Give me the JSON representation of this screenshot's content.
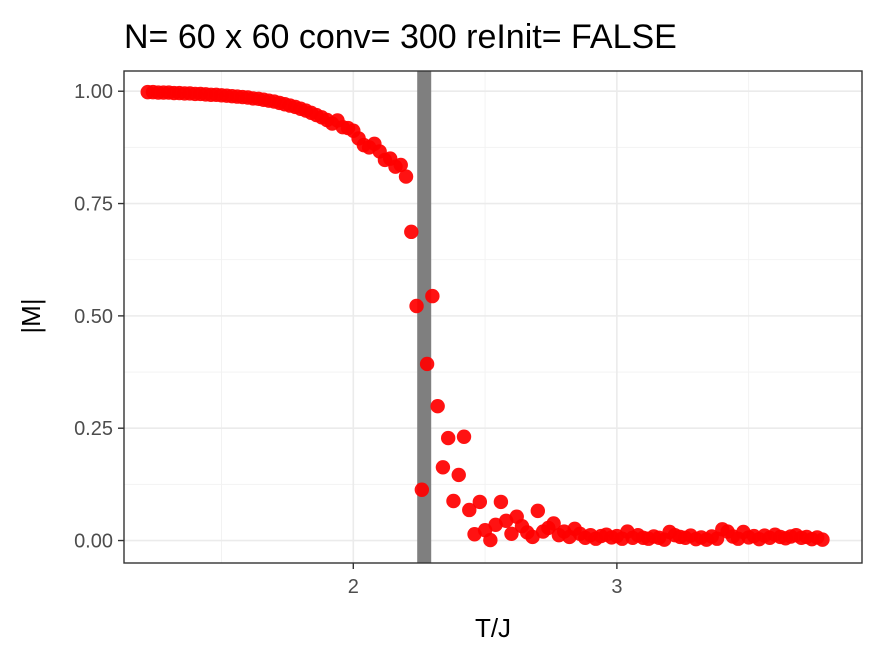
{
  "chart_data": {
    "type": "scatter",
    "title": "N= 60 x 60  conv= 300  reInit= FALSE",
    "xlabel": "T/J",
    "ylabel": "|M|",
    "xlim": [
      1.13,
      3.93
    ],
    "ylim": [
      -0.05,
      1.045
    ],
    "x_ticks": [
      2,
      3
    ],
    "y_ticks": [
      0.0,
      0.25,
      0.5,
      0.75,
      1.0
    ],
    "x_tick_labels": [
      "2",
      "3"
    ],
    "y_tick_labels": [
      "0.00",
      "0.25",
      "0.50",
      "0.75",
      "1.00"
    ],
    "grid": true,
    "reference_line": {
      "x": 2.269,
      "color": "#7f7f7f"
    },
    "point_color": "#ff0000",
    "series": [
      {
        "points": [
          [
            1.22,
            0.998
          ],
          [
            1.24,
            0.998
          ],
          [
            1.26,
            0.997
          ],
          [
            1.28,
            0.997
          ],
          [
            1.3,
            0.997
          ],
          [
            1.32,
            0.996
          ],
          [
            1.34,
            0.996
          ],
          [
            1.36,
            0.995
          ],
          [
            1.38,
            0.995
          ],
          [
            1.4,
            0.994
          ],
          [
            1.42,
            0.994
          ],
          [
            1.44,
            0.993
          ],
          [
            1.46,
            0.992
          ],
          [
            1.48,
            0.992
          ],
          [
            1.5,
            0.991
          ],
          [
            1.52,
            0.99
          ],
          [
            1.54,
            0.989
          ],
          [
            1.56,
            0.988
          ],
          [
            1.58,
            0.987
          ],
          [
            1.6,
            0.986
          ],
          [
            1.62,
            0.984
          ],
          [
            1.64,
            0.983
          ],
          [
            1.66,
            0.981
          ],
          [
            1.68,
            0.979
          ],
          [
            1.7,
            0.977
          ],
          [
            1.72,
            0.974
          ],
          [
            1.74,
            0.971
          ],
          [
            1.76,
            0.968
          ],
          [
            1.78,
            0.965
          ],
          [
            1.8,
            0.961
          ],
          [
            1.82,
            0.957
          ],
          [
            1.84,
            0.952
          ],
          [
            1.86,
            0.947
          ],
          [
            1.88,
            0.942
          ],
          [
            1.9,
            0.936
          ],
          [
            1.92,
            0.928
          ],
          [
            1.94,
            0.935
          ],
          [
            1.96,
            0.92
          ],
          [
            1.98,
            0.918
          ],
          [
            2.0,
            0.912
          ],
          [
            2.02,
            0.895
          ],
          [
            2.04,
            0.88
          ],
          [
            2.06,
            0.875
          ],
          [
            2.08,
            0.883
          ],
          [
            2.1,
            0.866
          ],
          [
            2.12,
            0.847
          ],
          [
            2.14,
            0.85
          ],
          [
            2.16,
            0.832
          ],
          [
            2.18,
            0.836
          ],
          [
            2.2,
            0.81
          ],
          [
            2.22,
            0.687
          ],
          [
            2.24,
            0.522
          ],
          [
            2.26,
            0.113
          ],
          [
            2.28,
            0.393
          ],
          [
            2.3,
            0.544
          ],
          [
            2.32,
            0.299
          ],
          [
            2.34,
            0.163
          ],
          [
            2.36,
            0.228
          ],
          [
            2.38,
            0.088
          ],
          [
            2.4,
            0.146
          ],
          [
            2.42,
            0.231
          ],
          [
            2.44,
            0.068
          ],
          [
            2.46,
            0.014
          ],
          [
            2.48,
            0.086
          ],
          [
            2.5,
            0.023
          ],
          [
            2.52,
            0.001
          ],
          [
            2.54,
            0.035
          ],
          [
            2.56,
            0.086
          ],
          [
            2.58,
            0.044
          ],
          [
            2.6,
            0.015
          ],
          [
            2.62,
            0.053
          ],
          [
            2.64,
            0.032
          ],
          [
            2.66,
            0.018
          ],
          [
            2.68,
            0.008
          ],
          [
            2.7,
            0.066
          ],
          [
            2.72,
            0.02
          ],
          [
            2.74,
            0.028
          ],
          [
            2.76,
            0.038
          ],
          [
            2.78,
            0.012
          ],
          [
            2.8,
            0.02
          ],
          [
            2.82,
            0.008
          ],
          [
            2.84,
            0.026
          ],
          [
            2.86,
            0.015
          ],
          [
            2.88,
            0.006
          ],
          [
            2.9,
            0.012
          ],
          [
            2.92,
            0.004
          ],
          [
            2.94,
            0.01
          ],
          [
            2.96,
            0.013
          ],
          [
            2.98,
            0.007
          ],
          [
            3.0,
            0.01
          ],
          [
            3.02,
            0.004
          ],
          [
            3.04,
            0.02
          ],
          [
            3.06,
            0.006
          ],
          [
            3.08,
            0.012
          ],
          [
            3.1,
            0.006
          ],
          [
            3.12,
            0.004
          ],
          [
            3.14,
            0.009
          ],
          [
            3.16,
            0.006
          ],
          [
            3.18,
            0.002
          ],
          [
            3.2,
            0.019
          ],
          [
            3.22,
            0.012
          ],
          [
            3.24,
            0.008
          ],
          [
            3.26,
            0.006
          ],
          [
            3.28,
            0.011
          ],
          [
            3.3,
            0.003
          ],
          [
            3.32,
            0.007
          ],
          [
            3.34,
            0.002
          ],
          [
            3.36,
            0.009
          ],
          [
            3.38,
            0.004
          ],
          [
            3.4,
            0.025
          ],
          [
            3.42,
            0.02
          ],
          [
            3.44,
            0.009
          ],
          [
            3.46,
            0.004
          ],
          [
            3.48,
            0.019
          ],
          [
            3.5,
            0.007
          ],
          [
            3.52,
            0.01
          ],
          [
            3.54,
            0.003
          ],
          [
            3.56,
            0.011
          ],
          [
            3.58,
            0.006
          ],
          [
            3.6,
            0.013
          ],
          [
            3.62,
            0.008
          ],
          [
            3.64,
            0.005
          ],
          [
            3.66,
            0.009
          ],
          [
            3.68,
            0.012
          ],
          [
            3.7,
            0.006
          ],
          [
            3.72,
            0.008
          ],
          [
            3.74,
            0.003
          ],
          [
            3.76,
            0.007
          ],
          [
            3.78,
            0.002
          ]
        ]
      }
    ]
  }
}
